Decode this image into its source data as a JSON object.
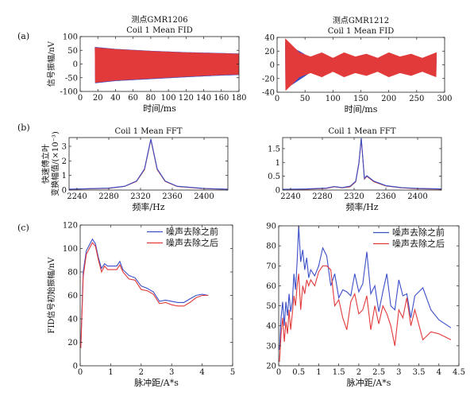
{
  "panel_labels": [
    "(a)",
    "(b)",
    "(c)"
  ],
  "chart_data": [
    {
      "id": "a-left",
      "type": "area",
      "title": "测点GMR1206",
      "subtitle": "Coil 1 Mean FID",
      "xlabel": "时间/ms",
      "ylabel": "信号振幅/nV",
      "xlim": [
        0,
        180
      ],
      "ylim": [
        -100,
        100
      ],
      "xticks": [
        0,
        20,
        40,
        60,
        80,
        100,
        120,
        140,
        160,
        180
      ],
      "yticks": [
        -100,
        -50,
        0,
        50,
        100
      ],
      "series": [
        {
          "color": "#3b4fc8",
          "x": [
            17,
            40,
            80,
            120,
            160,
            180
          ],
          "upper": [
            62,
            55,
            48,
            43,
            40,
            38
          ],
          "lower": [
            -70,
            -62,
            -55,
            -48,
            -42,
            -40
          ]
        },
        {
          "color": "#e23a3a",
          "x": [
            17,
            40,
            80,
            120,
            160,
            180
          ],
          "upper": [
            60,
            54,
            47,
            42,
            39,
            37
          ],
          "lower": [
            -68,
            -60,
            -53,
            -46,
            -40,
            -38
          ]
        }
      ]
    },
    {
      "id": "a-right",
      "type": "area",
      "title": "测点GMR1212",
      "subtitle": "Coil 1 Mean FID",
      "xlabel": "时间/ms",
      "ylabel": "",
      "xlim": [
        0,
        300
      ],
      "ylim": [
        -40,
        40
      ],
      "xticks": [
        0,
        50,
        100,
        150,
        200,
        250,
        300
      ],
      "yticks": [
        -40,
        -20,
        0,
        20,
        40
      ],
      "series": [
        {
          "color": "#3b4fc8",
          "x": [
            15,
            25,
            40,
            60,
            80,
            100,
            120,
            140,
            160,
            180,
            200,
            220,
            240,
            260,
            285
          ],
          "upper": [
            32,
            26,
            20,
            10,
            12,
            9,
            12,
            9,
            11,
            8,
            12,
            9,
            10,
            8,
            12
          ],
          "lower": [
            -34,
            -30,
            -22,
            -11,
            -12,
            -10,
            -12,
            -9,
            -12,
            -9,
            -12,
            -9,
            -11,
            -9,
            -13
          ]
        },
        {
          "color": "#e23a3a",
          "x": [
            15,
            25,
            40,
            60,
            80,
            100,
            120,
            140,
            160,
            180,
            200,
            220,
            240,
            260,
            285
          ],
          "upper": [
            38,
            30,
            18,
            12,
            18,
            10,
            18,
            12,
            16,
            10,
            18,
            12,
            16,
            10,
            18
          ],
          "lower": [
            -38,
            -30,
            -18,
            -12,
            -18,
            -10,
            -18,
            -12,
            -16,
            -10,
            -18,
            -12,
            -16,
            -10,
            -18
          ]
        }
      ]
    },
    {
      "id": "b-left",
      "type": "line",
      "title": "",
      "subtitle": "Coil 1 Mean FFT",
      "xlabel": "频率/Hz",
      "ylabel": "快速傅立叶",
      "ylabel2": "变换幅值/(×10⁻³)",
      "xlim": [
        2230,
        2430
      ],
      "ylim": [
        0,
        3.6
      ],
      "xticks": [
        2240,
        2280,
        2320,
        2360,
        2400
      ],
      "yticks": [
        0,
        1,
        2,
        3
      ],
      "series": [
        {
          "color": "#c4342f",
          "x": [
            2230,
            2280,
            2300,
            2315,
            2325,
            2333,
            2341,
            2351,
            2366,
            2400,
            2430
          ],
          "y": [
            0.05,
            0.12,
            0.25,
            0.6,
            1.4,
            3.45,
            1.4,
            0.6,
            0.25,
            0.1,
            0.05
          ]
        },
        {
          "color": "#3b4fc8",
          "x": [
            2230,
            2280,
            2300,
            2315,
            2325,
            2333,
            2341,
            2351,
            2366,
            2400,
            2430
          ],
          "y": [
            0.06,
            0.13,
            0.26,
            0.62,
            1.45,
            3.5,
            1.45,
            0.62,
            0.26,
            0.11,
            0.06
          ]
        }
      ]
    },
    {
      "id": "b-right",
      "type": "line",
      "title": "",
      "subtitle": "Coil 1 Mean FFT",
      "xlabel": "频率/Hz",
      "ylabel": "",
      "xlim": [
        2230,
        2430
      ],
      "ylim": [
        0,
        1.9
      ],
      "xticks": [
        2240,
        2280,
        2320,
        2360,
        2400
      ],
      "yticks": [
        0,
        0.5,
        1,
        1.5
      ],
      "series": [
        {
          "color": "#c4342f",
          "x": [
            2230,
            2260,
            2285,
            2295,
            2305,
            2315,
            2322,
            2326,
            2329,
            2333,
            2336,
            2345,
            2360,
            2380,
            2400,
            2430
          ],
          "y": [
            0.02,
            0.03,
            0.06,
            0.12,
            0.08,
            0.12,
            0.3,
            0.95,
            1.85,
            0.4,
            0.5,
            0.3,
            0.15,
            0.08,
            0.05,
            0.03
          ]
        },
        {
          "color": "#3b4fc8",
          "x": [
            2230,
            2260,
            2285,
            2295,
            2305,
            2315,
            2322,
            2326,
            2329,
            2333,
            2336,
            2345,
            2360,
            2380,
            2400,
            2430
          ],
          "y": [
            0.03,
            0.04,
            0.07,
            0.13,
            0.09,
            0.14,
            0.32,
            0.98,
            1.88,
            0.42,
            0.52,
            0.32,
            0.16,
            0.09,
            0.06,
            0.04
          ]
        }
      ]
    },
    {
      "id": "c-left",
      "type": "line",
      "title": "",
      "subtitle": "",
      "xlabel": "脉冲距/A*s",
      "ylabel": "FID信号初始振幅/nV",
      "xlim": [
        0,
        5
      ],
      "ylim": [
        0,
        120
      ],
      "xticks": [
        0,
        1,
        2,
        3,
        4,
        5
      ],
      "yticks": [
        0,
        20,
        40,
        60,
        80,
        100,
        120
      ],
      "legend": {
        "placement": "top-right",
        "entries": [
          "噪声去除之前",
          "噪声去除之后"
        ]
      },
      "series": [
        {
          "name": "噪声去除之前",
          "color": "#3b4fc8",
          "x": [
            0.02,
            0.1,
            0.2,
            0.3,
            0.4,
            0.5,
            0.6,
            0.7,
            0.8,
            0.9,
            1.0,
            1.1,
            1.2,
            1.3,
            1.4,
            1.6,
            1.8,
            2.0,
            2.2,
            2.4,
            2.6,
            2.8,
            3.0,
            3.2,
            3.4,
            3.6,
            3.8,
            4.0,
            4.2
          ],
          "y": [
            18,
            80,
            98,
            103,
            108,
            104,
            92,
            83,
            87,
            85,
            85,
            85,
            85,
            89,
            82,
            77,
            75,
            68,
            66,
            63,
            55,
            56,
            55,
            54,
            54,
            57,
            60,
            61,
            60
          ]
        },
        {
          "name": "噪声去除之后",
          "color": "#e23a3a",
          "x": [
            0.02,
            0.1,
            0.2,
            0.3,
            0.4,
            0.5,
            0.6,
            0.7,
            0.8,
            0.9,
            1.0,
            1.1,
            1.2,
            1.3,
            1.4,
            1.6,
            1.8,
            2.0,
            2.2,
            2.4,
            2.6,
            2.8,
            3.0,
            3.2,
            3.4,
            3.6,
            3.8,
            4.0,
            4.2
          ],
          "y": [
            15,
            76,
            95,
            100,
            105,
            102,
            90,
            80,
            85,
            82,
            82,
            82,
            82,
            86,
            80,
            74,
            73,
            65,
            64,
            61,
            53,
            54,
            52,
            51,
            51,
            54,
            58,
            60,
            60
          ]
        }
      ]
    },
    {
      "id": "c-right",
      "type": "line",
      "title": "",
      "subtitle": "",
      "xlabel": "脉冲距/A*s",
      "ylabel": "",
      "xlim": [
        0,
        4.5
      ],
      "ylim": [
        20,
        90
      ],
      "xticks": [
        0,
        0.5,
        1,
        1.5,
        2,
        2.5,
        3,
        3.5,
        4,
        4.5
      ],
      "yticks": [
        20,
        30,
        40,
        50,
        60,
        70,
        80,
        90
      ],
      "legend": {
        "placement": "top-right",
        "entries": [
          "噪声去除之前",
          "噪声去除之后"
        ]
      },
      "series": [
        {
          "name": "噪声去除之前",
          "color": "#3b4fc8",
          "x": [
            0.02,
            0.06,
            0.1,
            0.14,
            0.18,
            0.22,
            0.26,
            0.3,
            0.34,
            0.38,
            0.42,
            0.46,
            0.5,
            0.55,
            0.6,
            0.65,
            0.7,
            0.75,
            0.8,
            0.9,
            1.0,
            1.1,
            1.2,
            1.3,
            1.4,
            1.5,
            1.6,
            1.7,
            1.8,
            1.9,
            2.0,
            2.1,
            2.2,
            2.3,
            2.4,
            2.5,
            2.6,
            2.7,
            2.8,
            2.9,
            3.0,
            3.1,
            3.2,
            3.3,
            3.4,
            3.6,
            3.8,
            4.0,
            4.3
          ],
          "y": [
            28,
            44,
            52,
            40,
            52,
            45,
            56,
            47,
            52,
            66,
            58,
            72,
            90,
            72,
            78,
            68,
            74,
            64,
            68,
            65,
            70,
            79,
            75,
            60,
            66,
            54,
            58,
            57,
            55,
            66,
            57,
            61,
            77,
            56,
            60,
            47,
            57,
            66,
            50,
            48,
            63,
            55,
            56,
            44,
            55,
            59,
            48,
            43,
            39
          ]
        },
        {
          "name": "噪声去除之后",
          "color": "#e23a3a",
          "x": [
            0.02,
            0.06,
            0.1,
            0.14,
            0.18,
            0.22,
            0.26,
            0.3,
            0.34,
            0.38,
            0.42,
            0.46,
            0.5,
            0.55,
            0.6,
            0.65,
            0.7,
            0.75,
            0.8,
            0.9,
            1.0,
            1.1,
            1.2,
            1.3,
            1.4,
            1.5,
            1.6,
            1.7,
            1.8,
            1.9,
            2.0,
            2.1,
            2.2,
            2.3,
            2.4,
            2.5,
            2.6,
            2.7,
            2.8,
            2.9,
            3.0,
            3.1,
            3.2,
            3.3,
            3.4,
            3.6,
            3.8,
            4.0,
            4.3
          ],
          "y": [
            22,
            36,
            44,
            32,
            42,
            36,
            48,
            38,
            46,
            55,
            50,
            60,
            66,
            48,
            60,
            56,
            63,
            60,
            63,
            60,
            67,
            70,
            70,
            68,
            50,
            53,
            44,
            38,
            52,
            56,
            46,
            48,
            55,
            38,
            50,
            41,
            50,
            46,
            40,
            30,
            48,
            44,
            54,
            40,
            48,
            33,
            37,
            36,
            33
          ]
        }
      ]
    }
  ]
}
